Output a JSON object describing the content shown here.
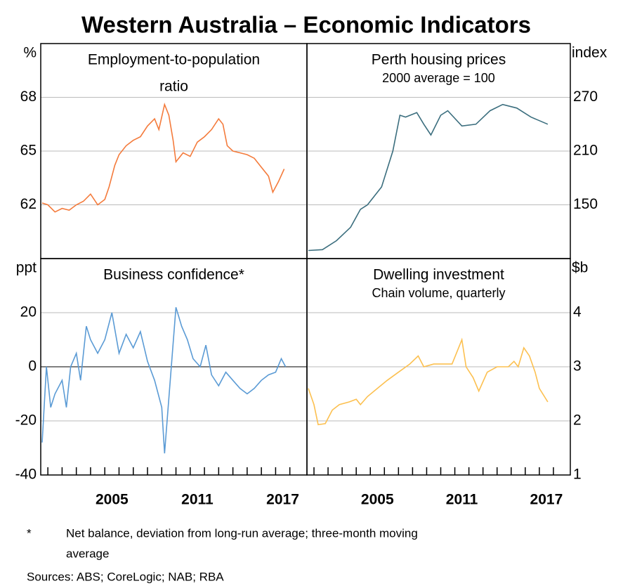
{
  "title": "Western Australia – Economic Indicators",
  "footnote": {
    "marker": "*",
    "lines": [
      "Net balance, deviation from long-run average; three-month moving",
      "average"
    ]
  },
  "sources": "Sources:   ABS; CoreLogic; NAB; RBA",
  "chart_data": [
    {
      "type": "line",
      "title": [
        "Employment-to-population",
        "ratio"
      ],
      "unit": "%",
      "axis_side": "left",
      "xlim": [
        2000.5,
        2019.2
      ],
      "ylim": [
        59,
        71
      ],
      "yticks": [
        62,
        65,
        68
      ],
      "grid": true,
      "x": [
        2000.6,
        2001.0,
        2001.5,
        2002.0,
        2002.5,
        2003.0,
        2003.5,
        2004.0,
        2004.5,
        2005.0,
        2005.3,
        2005.7,
        2006.0,
        2006.5,
        2007.0,
        2007.5,
        2008.0,
        2008.5,
        2008.8,
        2009.2,
        2009.5,
        2009.8,
        2010.0,
        2010.5,
        2011.0,
        2011.5,
        2012.0,
        2012.5,
        2013.0,
        2013.3,
        2013.6,
        2014.0,
        2014.5,
        2015.0,
        2015.5,
        2016.0,
        2016.5,
        2016.8,
        2017.2,
        2017.6
      ],
      "series": [
        {
          "color": "#f47b3c",
          "values": [
            62.1,
            62.0,
            61.6,
            61.8,
            61.7,
            62.0,
            62.2,
            62.6,
            62.0,
            62.3,
            63.0,
            64.2,
            64.8,
            65.3,
            65.6,
            65.8,
            66.4,
            66.8,
            66.2,
            67.6,
            67.0,
            65.6,
            64.4,
            64.9,
            64.7,
            65.5,
            65.8,
            66.2,
            66.8,
            66.5,
            65.3,
            65.0,
            64.9,
            64.8,
            64.6,
            64.1,
            63.6,
            62.7,
            63.3,
            64.0
          ]
        }
      ]
    },
    {
      "type": "line",
      "title": [
        "Perth housing prices"
      ],
      "subtitle": "2000 average = 100",
      "unit": "index",
      "axis_side": "right",
      "xlim": [
        2000.5,
        2019.2
      ],
      "ylim": [
        90,
        330
      ],
      "yticks": [
        150,
        210,
        270
      ],
      "grid": true,
      "x": [
        2000.6,
        2001.6,
        2002.6,
        2003.6,
        2004.3,
        2004.8,
        2005.8,
        2006.6,
        2007.1,
        2007.5,
        2008.3,
        2008.8,
        2009.3,
        2010.0,
        2010.5,
        2011.5,
        2012.5,
        2013.5,
        2014.4,
        2015.4,
        2016.4,
        2017.6
      ],
      "series": [
        {
          "color": "#3b6e7e",
          "values": [
            99,
            100,
            110,
            125,
            145,
            150,
            170,
            210,
            250,
            248,
            253,
            240,
            228,
            250,
            255,
            238,
            240,
            255,
            262,
            258,
            248,
            240
          ]
        }
      ]
    },
    {
      "type": "line",
      "title": [
        "Business confidence*"
      ],
      "unit": "ppt",
      "axis_side": "left",
      "xlim": [
        2000.5,
        2019.2
      ],
      "ylim": [
        -40,
        40
      ],
      "yticks": [
        -40,
        -20,
        0,
        20
      ],
      "grid": true,
      "zero_line": true,
      "xticks": [
        {
          "value": 2005.5,
          "label": "2005"
        },
        {
          "value": 2011.5,
          "label": "2011"
        },
        {
          "value": 2017.5,
          "label": "2017"
        }
      ],
      "xminor": [
        2001,
        2002,
        2003,
        2004,
        2005,
        2006,
        2007,
        2008,
        2009,
        2010,
        2011,
        2012,
        2013,
        2014,
        2015,
        2016,
        2017,
        2018
      ],
      "x": [
        2000.6,
        2000.9,
        2001.2,
        2001.5,
        2002.0,
        2002.3,
        2002.6,
        2003.0,
        2003.3,
        2003.7,
        2004.0,
        2004.5,
        2005.0,
        2005.5,
        2006.0,
        2006.5,
        2007.0,
        2007.5,
        2008.0,
        2008.5,
        2009.0,
        2009.2,
        2009.6,
        2010.0,
        2010.4,
        2010.8,
        2011.2,
        2011.7,
        2012.1,
        2012.5,
        2013.0,
        2013.5,
        2014.0,
        2014.5,
        2015.0,
        2015.5,
        2016.0,
        2016.5,
        2017.0,
        2017.4,
        2017.7
      ],
      "series": [
        {
          "color": "#5b9bd5",
          "values": [
            -28,
            0,
            -15,
            -10,
            -5,
            -15,
            0,
            5,
            -5,
            15,
            10,
            5,
            10,
            20,
            5,
            12,
            7,
            13,
            2,
            -5,
            -15,
            -32,
            -5,
            22,
            15,
            10,
            3,
            0,
            8,
            -3,
            -7,
            -2,
            -5,
            -8,
            -10,
            -8,
            -5,
            -3,
            -2,
            3,
            0
          ]
        }
      ]
    },
    {
      "type": "line",
      "title": [
        "Dwelling investment"
      ],
      "subtitle": "Chain volume, quarterly",
      "unit": "$b",
      "axis_side": "right",
      "xlim": [
        2000.5,
        2019.2
      ],
      "ylim": [
        1,
        5
      ],
      "yticks": [
        1,
        2,
        3,
        4
      ],
      "grid": true,
      "xticks": [
        {
          "value": 2005.5,
          "label": "2005"
        },
        {
          "value": 2011.5,
          "label": "2011"
        },
        {
          "value": 2017.5,
          "label": "2017"
        }
      ],
      "xminor": [
        2001,
        2002,
        2003,
        2004,
        2005,
        2006,
        2007,
        2008,
        2009,
        2010,
        2011,
        2012,
        2013,
        2014,
        2015,
        2016,
        2017,
        2018
      ],
      "x": [
        2000.6,
        2001.0,
        2001.3,
        2001.8,
        2002.3,
        2002.8,
        2003.5,
        2004.0,
        2004.3,
        2004.8,
        2005.5,
        2006.2,
        2007.0,
        2007.8,
        2008.4,
        2008.8,
        2009.5,
        2010.3,
        2010.8,
        2011.5,
        2011.8,
        2012.3,
        2012.7,
        2013.3,
        2014.0,
        2014.8,
        2015.2,
        2015.5,
        2015.9,
        2016.3,
        2016.7,
        2017.0,
        2017.6
      ],
      "series": [
        {
          "color": "#fcc050",
          "values": [
            2.6,
            2.3,
            1.93,
            1.95,
            2.2,
            2.3,
            2.35,
            2.4,
            2.3,
            2.45,
            2.6,
            2.75,
            2.9,
            3.05,
            3.2,
            3.0,
            3.05,
            3.05,
            3.05,
            3.5,
            3.0,
            2.8,
            2.55,
            2.9,
            3.0,
            3.0,
            3.1,
            3.0,
            3.35,
            3.2,
            2.9,
            2.6,
            2.35
          ]
        }
      ]
    }
  ]
}
